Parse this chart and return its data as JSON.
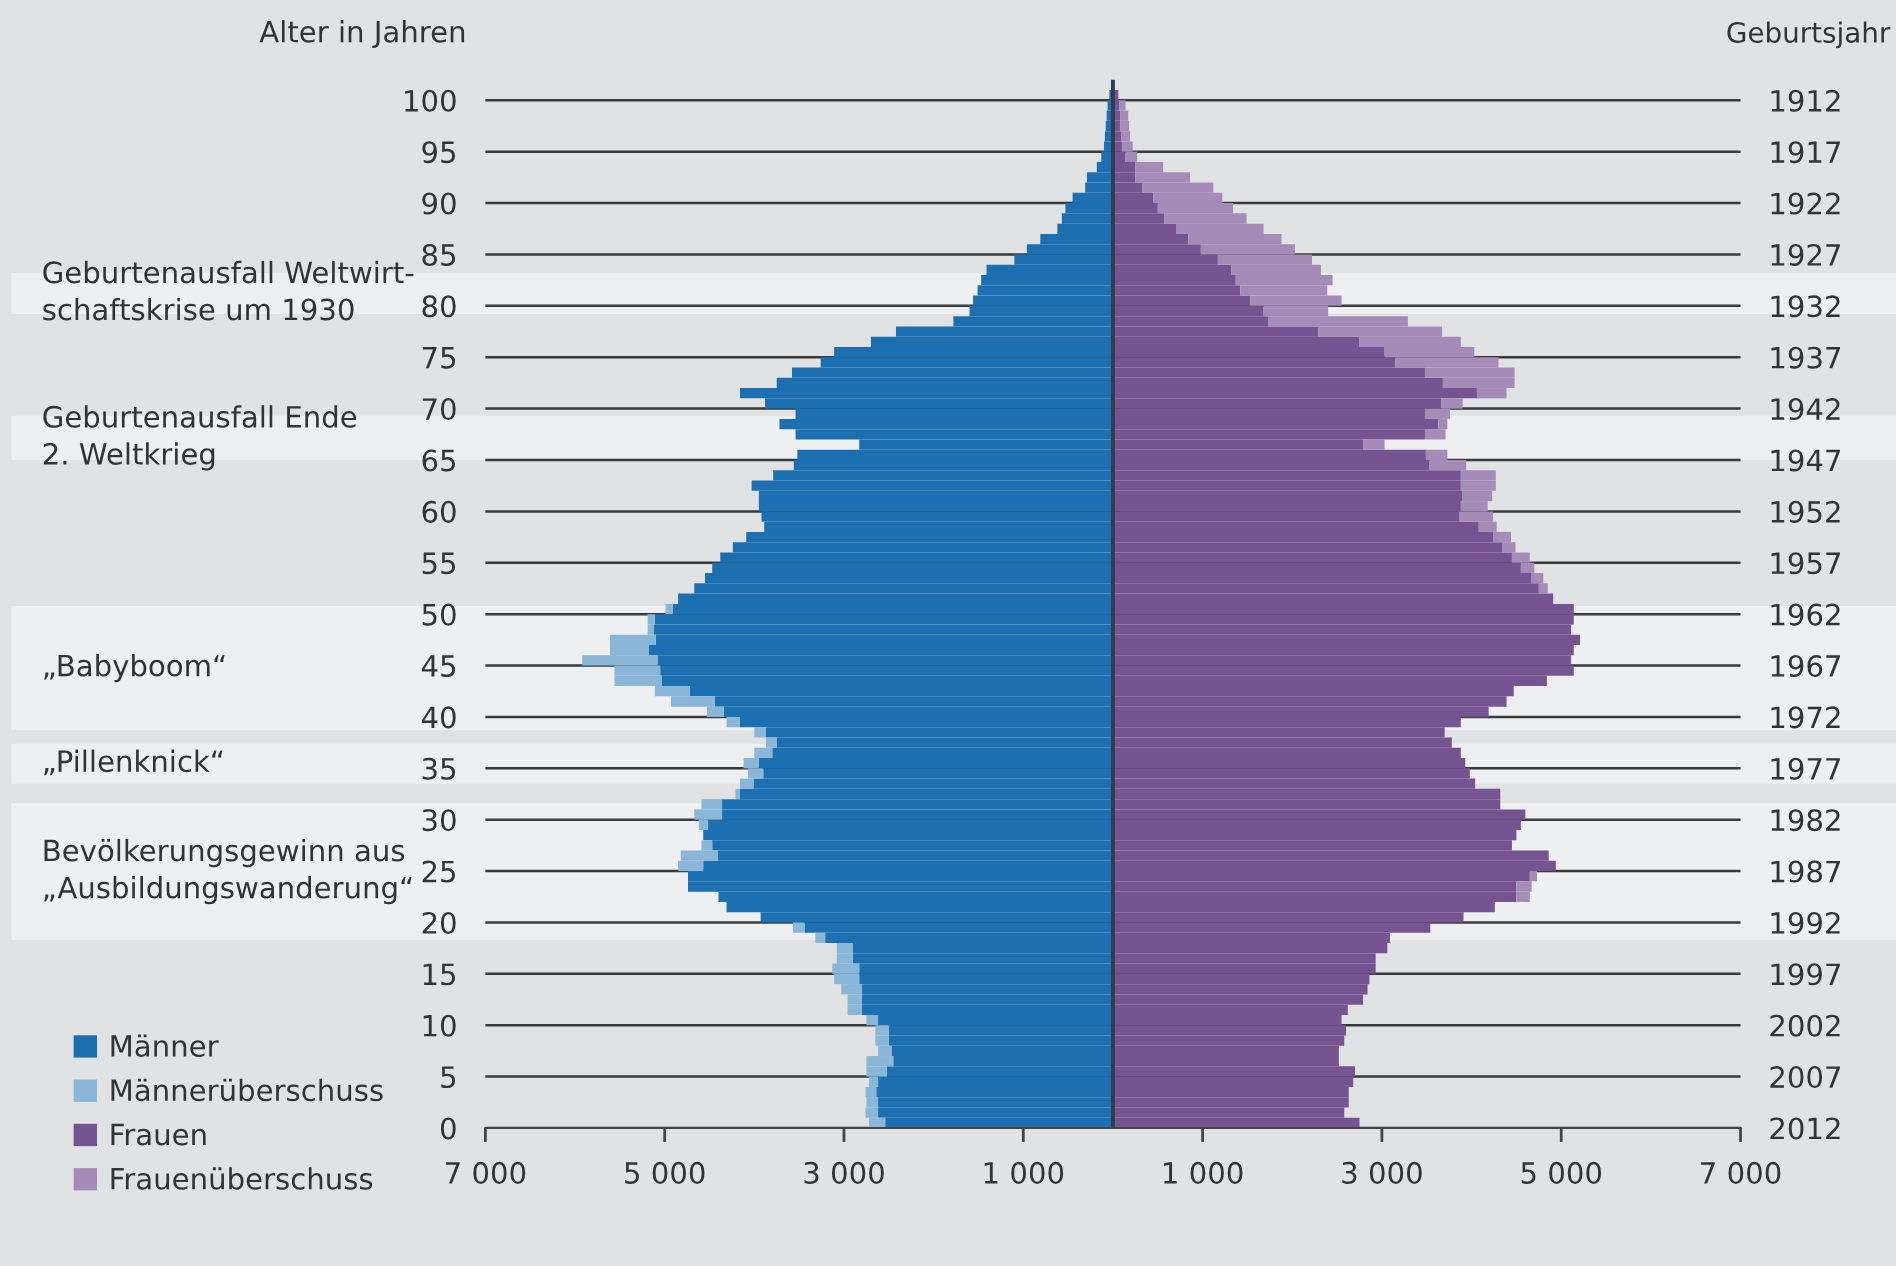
{
  "chart_data": {
    "type": "bar",
    "orientation": "horizontal",
    "stacked": true,
    "ylabel": "Alter in Jahren",
    "y2label": "Geburtsjahr",
    "x": [
      0,
      1,
      2,
      3,
      4,
      5,
      6,
      7,
      8,
      9,
      10,
      11,
      12,
      13,
      14,
      15,
      16,
      17,
      18,
      19,
      20,
      21,
      22,
      23,
      24,
      25,
      26,
      27,
      28,
      29,
      30,
      31,
      32,
      33,
      34,
      35,
      36,
      37,
      38,
      39,
      40,
      41,
      42,
      43,
      44,
      45,
      46,
      47,
      48,
      49,
      50,
      51,
      52,
      53,
      54,
      55,
      56,
      57,
      58,
      59,
      60,
      61,
      62,
      63,
      64,
      65,
      66,
      67,
      68,
      69,
      70,
      71,
      72,
      73,
      74,
      75,
      76,
      77,
      78,
      79,
      80,
      81,
      82,
      83,
      84,
      85,
      86,
      87,
      88,
      89,
      90,
      91,
      92,
      93,
      94,
      95,
      96,
      97,
      98,
      99,
      100
    ],
    "series": [
      {
        "name": "Männer",
        "color": "#1c70b1",
        "values": [
          -2540,
          -2620,
          -2620,
          -2640,
          -2620,
          -2520,
          -2450,
          -2470,
          -2500,
          -2500,
          -2620,
          -2800,
          -2800,
          -2800,
          -2830,
          -2830,
          -2900,
          -2900,
          -3210,
          -3440,
          -3930,
          -4310,
          -4400,
          -4740,
          -4740,
          -4570,
          -4410,
          -4470,
          -4570,
          -4520,
          -4360,
          -4360,
          -4160,
          -4010,
          -3900,
          -3950,
          -3800,
          -3750,
          -3870,
          -4160,
          -4340,
          -4440,
          -4720,
          -5030,
          -5050,
          -5080,
          -5180,
          -5100,
          -5120,
          -5110,
          -4910,
          -4850,
          -4670,
          -4550,
          -4470,
          -4380,
          -4240,
          -4090,
          -3890,
          -3920,
          -3950,
          -3950,
          -4030,
          -3790,
          -3560,
          -3520,
          -2830,
          -3540,
          -3720,
          -3540,
          -3880,
          -4160,
          -3750,
          -3580,
          -3260,
          -3110,
          -2700,
          -2420,
          -1780,
          -1600,
          -1560,
          -1510,
          -1470,
          -1410,
          -1100,
          -960,
          -810,
          -620,
          -570,
          -530,
          -450,
          -310,
          -290,
          -180,
          -130,
          -100,
          -90,
          -80,
          -70,
          -60,
          -40
        ]
      },
      {
        "name": "Männerüberschuss",
        "color": "#8ab6d8",
        "values": [
          -180,
          -140,
          -130,
          -120,
          -100,
          -230,
          -300,
          -150,
          -150,
          -150,
          -130,
          -160,
          -160,
          -230,
          -280,
          -300,
          -180,
          -180,
          -110,
          -130,
          null,
          null,
          null,
          null,
          null,
          -280,
          -410,
          -120,
          null,
          -100,
          -310,
          -230,
          -50,
          -150,
          -170,
          -170,
          -200,
          -120,
          -130,
          -150,
          -190,
          -490,
          -390,
          -530,
          -510,
          -840,
          -430,
          -510,
          -70,
          -80,
          -80,
          null,
          null,
          null,
          null,
          null,
          null,
          null,
          null,
          null,
          null,
          null,
          null,
          null,
          null,
          null,
          null,
          null,
          null,
          null,
          null,
          null,
          null,
          null,
          null,
          null,
          null,
          null,
          null,
          null,
          null,
          null,
          null,
          null,
          null,
          null,
          null,
          null,
          null,
          null,
          null,
          null,
          null,
          null,
          null,
          null,
          null,
          null,
          null,
          null,
          null
        ]
      },
      {
        "name": "Frauen",
        "color": "#765391",
        "values": [
          2750,
          2580,
          2630,
          2630,
          2680,
          2700,
          2520,
          2520,
          2580,
          2600,
          2550,
          2620,
          2790,
          2840,
          2860,
          2930,
          2930,
          3060,
          3090,
          3540,
          3910,
          4260,
          4500,
          4500,
          4650,
          4940,
          4860,
          4450,
          4500,
          4550,
          4600,
          4320,
          4320,
          4040,
          3980,
          3930,
          3880,
          3780,
          3700,
          3880,
          4190,
          4390,
          4470,
          4840,
          5140,
          5110,
          5140,
          5210,
          5110,
          5140,
          5140,
          4910,
          4750,
          4670,
          4550,
          4450,
          4340,
          4240,
          4080,
          3860,
          3880,
          3900,
          3880,
          3880,
          3530,
          3490,
          2790,
          3480,
          3630,
          3480,
          3660,
          4060,
          3680,
          3480,
          3150,
          3030,
          2750,
          2290,
          1730,
          1680,
          1530,
          1420,
          1370,
          1320,
          1170,
          980,
          840,
          710,
          570,
          500,
          450,
          330,
          250,
          250,
          140,
          100,
          90,
          80,
          80,
          70,
          60
        ]
      },
      {
        "name": "Frauenüberschuss",
        "color": "#a58bb8",
        "values": [
          null,
          null,
          null,
          null,
          null,
          null,
          null,
          null,
          null,
          null,
          null,
          null,
          null,
          null,
          null,
          null,
          null,
          null,
          null,
          null,
          null,
          null,
          150,
          170,
          80,
          null,
          null,
          null,
          null,
          null,
          null,
          null,
          null,
          null,
          null,
          null,
          null,
          null,
          null,
          null,
          null,
          null,
          null,
          null,
          null,
          null,
          null,
          null,
          null,
          null,
          null,
          null,
          100,
          130,
          150,
          200,
          150,
          200,
          200,
          380,
          300,
          330,
          390,
          390,
          410,
          240,
          240,
          230,
          100,
          280,
          240,
          330,
          800,
          1000,
          1150,
          1000,
          1130,
          1380,
          1560,
          720,
          1020,
          970,
          1080,
          1000,
          1050,
          1050,
          1040,
          970,
          920,
          840,
          770,
          790,
          610,
          310,
          130,
          120,
          100,
          100,
          90,
          70,
          null
        ]
      }
    ],
    "xlim": [
      -7000,
      7000
    ],
    "xticks": [
      {
        "value": -7000,
        "label": "7 000"
      },
      {
        "value": -5000,
        "label": "5 000"
      },
      {
        "value": -3000,
        "label": "3 000"
      },
      {
        "value": -1000,
        "label": "1 000"
      },
      {
        "value": 1000,
        "label": "1 000"
      },
      {
        "value": 3000,
        "label": "3 000"
      },
      {
        "value": 5000,
        "label": "5 000"
      },
      {
        "value": 7000,
        "label": "7 000"
      }
    ],
    "ylim": [
      0,
      102
    ],
    "yticks": [
      0,
      5,
      10,
      15,
      20,
      25,
      30,
      35,
      40,
      45,
      50,
      55,
      60,
      65,
      70,
      75,
      80,
      85,
      90,
      95,
      100
    ],
    "y2lim": [
      2012,
      1910
    ],
    "y2ticks": [
      2012,
      2007,
      2002,
      1997,
      1992,
      1987,
      1982,
      1977,
      1972,
      1967,
      1962,
      1957,
      1952,
      1947,
      1942,
      1937,
      1932,
      1927,
      1922,
      1917,
      1912
    ],
    "ref_lines": [
      {
        "axis": "x",
        "value": 0,
        "color": "#2d3e50"
      }
    ],
    "bands": [
      {
        "axis": "y",
        "from": 79.2,
        "to": 83.2,
        "label": "Geburtenausfall Weltwirt-\nschaftskrise um 1930",
        "color": "#eeeff1"
      },
      {
        "axis": "y",
        "from": 65,
        "to": 69.3,
        "label": "Geburtenausfall Ende\n2. Weltkrieg",
        "color": "#eeeff1"
      },
      {
        "axis": "y",
        "from": 38.7,
        "to": 50.8,
        "label": "„Babyboom“",
        "color": "#eeeff1"
      },
      {
        "axis": "y",
        "from": 33.5,
        "to": 37.4,
        "label": "„Pillenknick“",
        "color": "#eeeff1"
      },
      {
        "axis": "y",
        "from": 18.3,
        "to": 31.6,
        "label": "Bevölkerungsgewinn aus\n„Ausbildungswanderung“",
        "color": "#eeeff1"
      }
    ],
    "grid": "y",
    "legend": "bottom left"
  }
}
